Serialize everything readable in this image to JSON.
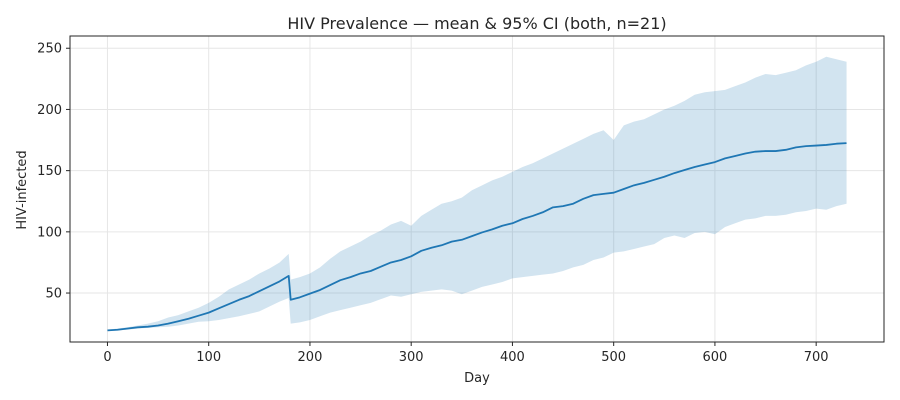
{
  "chart_data": {
    "type": "line",
    "title": "HIV Prevalence — mean & 95% CI (both, n=21)",
    "xlabel": "Day",
    "ylabel": "HIV-infected",
    "xlim": [
      -37,
      767
    ],
    "ylim": [
      10,
      260
    ],
    "xticks": [
      0,
      100,
      200,
      300,
      400,
      500,
      600,
      700
    ],
    "yticks": [
      50,
      100,
      150,
      200,
      250
    ],
    "grid": true,
    "legend": "none",
    "colors": {
      "mean": "#1f77b4",
      "band": "#1f77b4"
    },
    "series": [
      {
        "kind": "mean",
        "x": [
          0,
          10,
          20,
          30,
          40,
          50,
          60,
          70,
          80,
          90,
          100,
          110,
          120,
          130,
          140,
          150,
          160,
          170,
          179,
          181,
          190,
          200,
          210,
          220,
          230,
          240,
          250,
          260,
          270,
          280,
          290,
          300,
          310,
          320,
          330,
          340,
          350,
          360,
          370,
          380,
          390,
          400,
          410,
          420,
          430,
          440,
          450,
          460,
          470,
          480,
          490,
          500,
          510,
          520,
          530,
          540,
          550,
          560,
          570,
          580,
          590,
          600,
          610,
          620,
          630,
          640,
          650,
          660,
          670,
          680,
          690,
          700,
          710,
          720,
          730
        ],
        "y": [
          19.5,
          20,
          21,
          22,
          22.5,
          23.5,
          25,
          27,
          29,
          31.5,
          34,
          37.5,
          41,
          44.5,
          47.5,
          51.5,
          55.5,
          59.5,
          64,
          44.5,
          46.5,
          49.5,
          52.5,
          56.5,
          60.5,
          63,
          66,
          68,
          71.5,
          75,
          77,
          80,
          84.5,
          87,
          89,
          92,
          93.5,
          96.5,
          99.5,
          102,
          105,
          107,
          110.5,
          113,
          116,
          120,
          121,
          123,
          127,
          130,
          131,
          132,
          135,
          138,
          140,
          142.5,
          145,
          148,
          150.5,
          153,
          155,
          157,
          160,
          162,
          164,
          165.5,
          166,
          166,
          167,
          169,
          170,
          170.5,
          171,
          172,
          172.5
        ]
      },
      {
        "kind": "ci_upper",
        "x": [
          0,
          10,
          20,
          30,
          40,
          50,
          60,
          70,
          80,
          90,
          100,
          110,
          120,
          130,
          140,
          150,
          160,
          170,
          179,
          181,
          190,
          200,
          210,
          220,
          230,
          240,
          250,
          260,
          270,
          280,
          290,
          300,
          310,
          320,
          330,
          340,
          350,
          360,
          370,
          380,
          390,
          400,
          410,
          420,
          430,
          440,
          450,
          460,
          470,
          480,
          490,
          500,
          510,
          520,
          530,
          540,
          550,
          560,
          570,
          580,
          590,
          600,
          610,
          620,
          630,
          640,
          650,
          660,
          670,
          680,
          690,
          700,
          710,
          720,
          730
        ],
        "y": [
          20,
          21,
          22,
          23.5,
          25,
          27,
          30,
          32,
          35,
          38,
          42,
          47,
          53,
          57,
          61,
          66,
          70,
          75,
          82,
          61,
          63,
          66,
          71,
          78,
          84,
          88,
          92,
          97,
          101,
          106,
          109,
          105,
          113,
          118,
          123,
          125,
          128,
          134,
          138,
          142,
          145,
          149,
          153,
          156,
          160,
          164,
          168,
          172,
          176,
          180,
          183,
          175,
          187,
          190,
          192,
          196,
          200,
          203,
          207,
          212,
          214,
          215,
          216,
          219,
          222,
          226,
          229,
          228,
          230,
          232,
          236,
          239,
          243,
          241,
          239
        ]
      },
      {
        "kind": "ci_lower",
        "x": [
          0,
          10,
          20,
          30,
          40,
          50,
          60,
          70,
          80,
          90,
          100,
          110,
          120,
          130,
          140,
          150,
          160,
          170,
          179,
          181,
          190,
          200,
          210,
          220,
          230,
          240,
          250,
          260,
          270,
          280,
          290,
          300,
          310,
          320,
          330,
          340,
          350,
          360,
          370,
          380,
          390,
          400,
          410,
          420,
          430,
          440,
          450,
          460,
          470,
          480,
          490,
          500,
          510,
          520,
          530,
          540,
          550,
          560,
          570,
          580,
          590,
          600,
          610,
          620,
          630,
          640,
          650,
          660,
          670,
          680,
          690,
          700,
          710,
          720,
          730
        ],
        "y": [
          19,
          19.5,
          20,
          21,
          21.5,
          22,
          22.5,
          23.5,
          25,
          26.5,
          27,
          28,
          29.5,
          31,
          33,
          35,
          39,
          43,
          46,
          25,
          26,
          28,
          31,
          34,
          36,
          38,
          40,
          42,
          45,
          48,
          47,
          49,
          51,
          52,
          53,
          52,
          49,
          52,
          55,
          57,
          59,
          62,
          63,
          64,
          65,
          66,
          68,
          71,
          73,
          77,
          79,
          83,
          84,
          86,
          88,
          90,
          95,
          97,
          95,
          99,
          100,
          98,
          104,
          107,
          110,
          111,
          113,
          113,
          114,
          116,
          117,
          119,
          118,
          121,
          123
        ]
      }
    ]
  }
}
